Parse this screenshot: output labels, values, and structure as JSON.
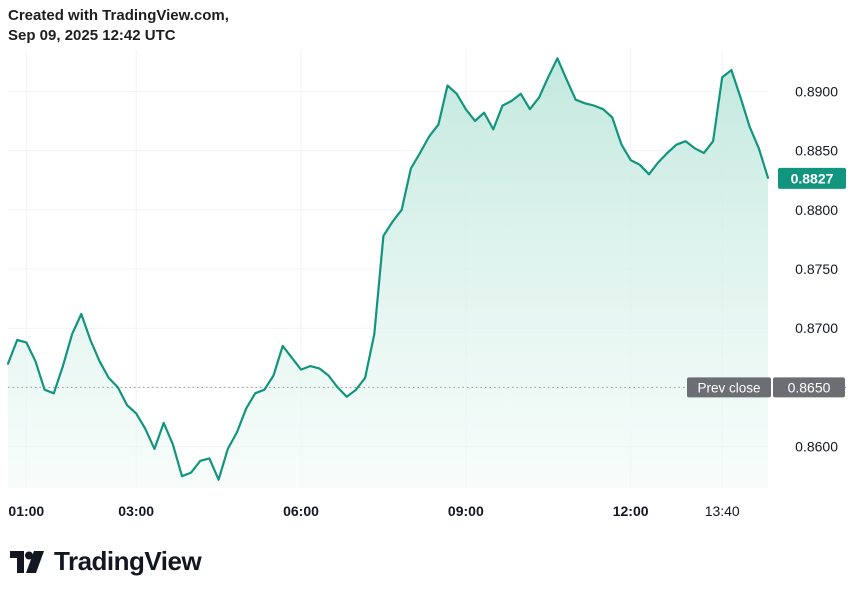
{
  "header": {
    "line1": "Created with TradingView.com,",
    "line2": "Sep 09, 2025 12:42 UTC"
  },
  "brand": {
    "name": "TradingView",
    "logo_icon": "tradingview-logo-icon"
  },
  "colors": {
    "line": "#12957e",
    "fill_top": "#bfe7dc",
    "fill_bottom": "#f2fbf8",
    "last_price_badge": "#12957e",
    "prev_close_badge": "#6b6e73",
    "grid": "#f0f3fa",
    "axis_text": "#131722",
    "prev_close_line": "#9a9a9a"
  },
  "chart_data": {
    "type": "area",
    "title": "",
    "xlabel": "",
    "ylabel": "",
    "ylim": [
      0.8565,
      0.8935
    ],
    "xlim": [
      "00:40",
      "14:30"
    ],
    "grid": true,
    "y_ticks": [
      "0.8600",
      "0.8650",
      "0.8700",
      "0.8750",
      "0.8800",
      "0.8850",
      "0.8900"
    ],
    "x_ticks": [
      {
        "label": "01:00",
        "time": "01:00",
        "bold": true
      },
      {
        "label": "03:00",
        "time": "03:00",
        "bold": true
      },
      {
        "label": "06:00",
        "time": "06:00",
        "bold": true
      },
      {
        "label": "09:00",
        "time": "09:00",
        "bold": true
      },
      {
        "label": "12:00",
        "time": "12:00",
        "bold": true
      },
      {
        "label": "13:40",
        "time": "13:40",
        "bold": false
      }
    ],
    "prev_close": {
      "label": "Prev close",
      "value_label": "0.8650",
      "value": 0.865
    },
    "last_price": {
      "label": "0.8827",
      "value": 0.8827
    },
    "series": [
      {
        "x": [
          "00:40",
          "00:50",
          "01:00",
          "01:10",
          "01:20",
          "01:30",
          "01:40",
          "01:50",
          "02:00",
          "02:10",
          "02:20",
          "02:30",
          "02:40",
          "02:50",
          "03:00",
          "03:10",
          "03:20",
          "03:30",
          "03:40",
          "03:50",
          "04:00",
          "04:10",
          "04:20",
          "04:30",
          "04:40",
          "04:50",
          "05:00",
          "05:10",
          "05:20",
          "05:30",
          "05:40",
          "05:50",
          "06:00",
          "06:10",
          "06:20",
          "06:30",
          "06:40",
          "06:50",
          "07:00",
          "07:10",
          "07:20",
          "07:30",
          "07:40",
          "07:50",
          "08:00",
          "08:10",
          "08:20",
          "08:30",
          "08:40",
          "08:50",
          "09:00",
          "09:10",
          "09:20",
          "09:30",
          "09:40",
          "09:50",
          "10:00",
          "10:10",
          "10:20",
          "10:30",
          "10:40",
          "10:50",
          "11:00",
          "11:10",
          "11:20",
          "11:30",
          "11:40",
          "11:50",
          "12:00",
          "12:10",
          "12:20",
          "12:30",
          "12:40",
          "12:50",
          "13:00",
          "13:10",
          "13:20",
          "13:30",
          "13:40",
          "13:50",
          "14:00",
          "14:10",
          "14:20",
          "14:30"
        ],
        "values": [
          0.867,
          0.869,
          0.8688,
          0.8672,
          0.8648,
          0.8645,
          0.8668,
          0.8695,
          0.8712,
          0.869,
          0.8672,
          0.8658,
          0.865,
          0.8635,
          0.8628,
          0.8615,
          0.8598,
          0.862,
          0.8602,
          0.8575,
          0.8578,
          0.8588,
          0.859,
          0.8572,
          0.8598,
          0.8612,
          0.8632,
          0.8645,
          0.8648,
          0.866,
          0.8685,
          0.8675,
          0.8665,
          0.8668,
          0.8666,
          0.866,
          0.865,
          0.8642,
          0.8648,
          0.8658,
          0.8695,
          0.8778,
          0.879,
          0.88,
          0.8835,
          0.8848,
          0.8862,
          0.8872,
          0.8905,
          0.8898,
          0.8885,
          0.8875,
          0.8882,
          0.8868,
          0.8888,
          0.8892,
          0.8898,
          0.8885,
          0.8895,
          0.8912,
          0.8928,
          0.891,
          0.8893,
          0.889,
          0.8888,
          0.8885,
          0.8878,
          0.8855,
          0.8842,
          0.8838,
          0.883,
          0.884,
          0.8848,
          0.8855,
          0.8858,
          0.8852,
          0.8848,
          0.8858,
          0.8912,
          0.8918,
          0.8895,
          0.887,
          0.8852,
          0.8827
        ]
      }
    ]
  }
}
